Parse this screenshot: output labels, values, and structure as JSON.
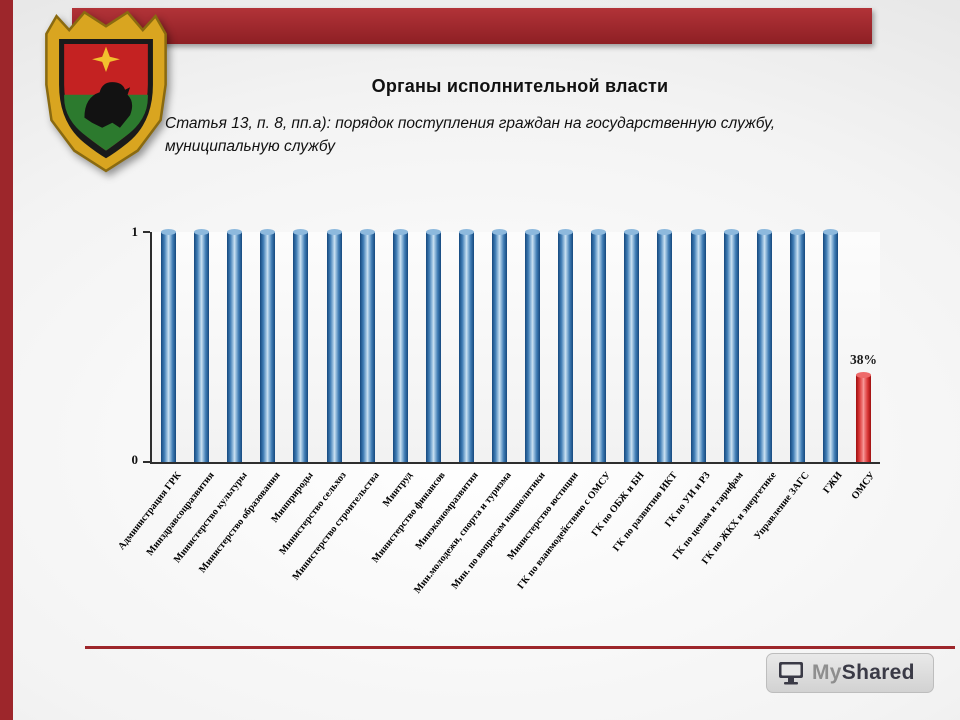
{
  "slide": {
    "title": "Органы исполнительной власти",
    "subtitle_line1": "Статья 13, п. 8, пп.а): порядок поступления граждан на государственную службу,",
    "subtitle_line2": "муниципальную службу"
  },
  "colors": {
    "accent_red": "#9d262b",
    "bar_blue": "#2e6da8",
    "bar_red": "#d92020",
    "background": "#eeeeee"
  },
  "chart_data": {
    "type": "bar",
    "title": "",
    "xlabel": "",
    "ylabel": "",
    "ylim": [
      0,
      1
    ],
    "yticks": [
      "0",
      "1"
    ],
    "grid": false,
    "legend": false,
    "categories": [
      "Администрация ГРК",
      "Минздравсоцразвития",
      "Министерство культуры",
      "Министерство образования",
      "Минприроды",
      "Министерство сельхоз",
      "Министерство строительства",
      "Минтруд",
      "Министерство финансов",
      "Минэкономразвития",
      "Мин.молодежи, спорта и туризма",
      "Мин. по вопросам нацполитики",
      "Министерство юстиции",
      "ГК по взаимодействию с ОМСУ",
      "ГК по ОБЖ и БН",
      "ГК по развитию ИКТ",
      "ГК по УИ и РЗ",
      "ГК по ценам и тарифам",
      "ГК по ЖКХ и энергетике",
      "Управление ЗАГС",
      "ГЖИ",
      "ОМСУ"
    ],
    "values": [
      1,
      1,
      1,
      1,
      1,
      1,
      1,
      1,
      1,
      1,
      1,
      1,
      1,
      1,
      1,
      1,
      1,
      1,
      1,
      1,
      1,
      0.38
    ],
    "bar_colors": [
      "blue",
      "blue",
      "blue",
      "blue",
      "blue",
      "blue",
      "blue",
      "blue",
      "blue",
      "blue",
      "blue",
      "blue",
      "blue",
      "blue",
      "blue",
      "blue",
      "blue",
      "blue",
      "blue",
      "blue",
      "blue",
      "red"
    ],
    "annotations": {
      "21": "38%"
    }
  },
  "footer": {
    "logo_my": "My",
    "logo_shared": "Shared"
  }
}
